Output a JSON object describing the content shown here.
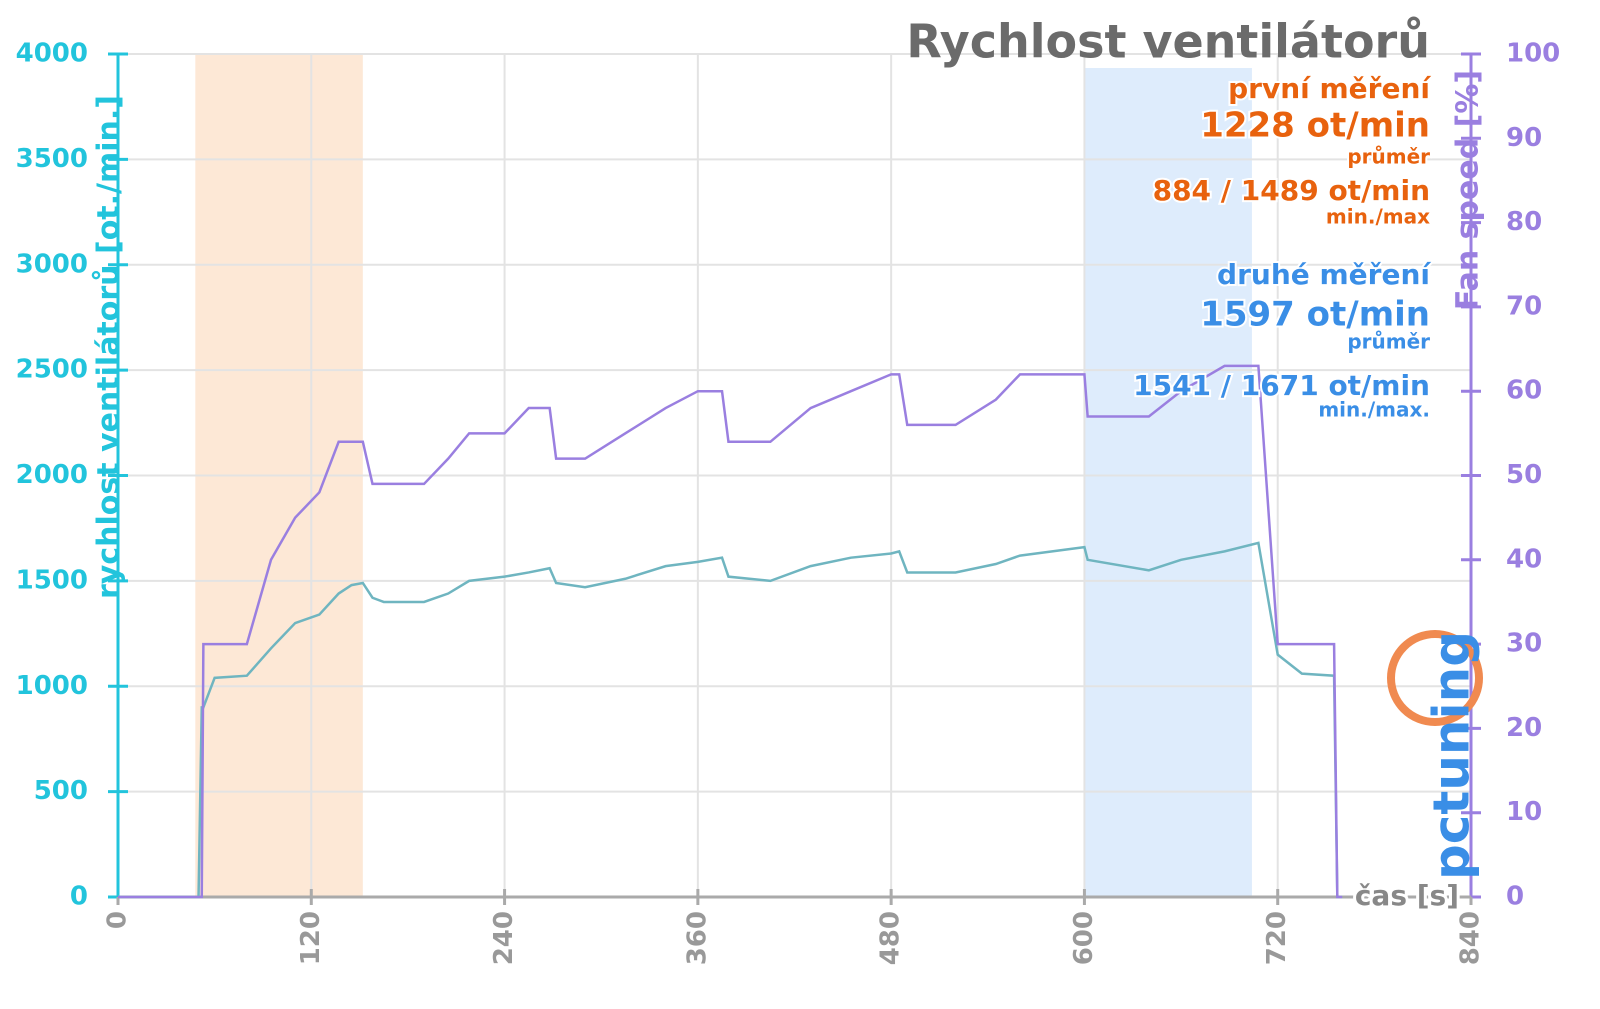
{
  "chart_data": {
    "type": "line",
    "title": "Rychlost ventilátorů",
    "x_label": "čas [s]",
    "y_label": "rychlost ventilátorů [ot./min.]",
    "y2_label": "Fan speed [%]",
    "logo": "pctuning",
    "x": [
      0,
      50,
      52,
      53,
      60,
      80,
      95,
      110,
      125,
      137,
      145,
      152,
      158,
      165,
      190,
      205,
      218,
      240,
      255,
      268,
      272,
      290,
      315,
      340,
      360,
      375,
      379,
      405,
      430,
      455,
      480,
      485,
      490,
      520,
      545,
      560,
      590,
      600,
      602,
      640,
      660,
      687,
      708,
      720,
      735,
      755,
      757,
      760
    ],
    "series": [
      {
        "name": "rychlost ventilátorů",
        "color": "#6fb5c0",
        "values": [
          0,
          0,
          900,
          900,
          1040,
          1050,
          1180,
          1300,
          1340,
          1440,
          1480,
          1490,
          1420,
          1400,
          1400,
          1440,
          1500,
          1520,
          1540,
          1560,
          1490,
          1470,
          1510,
          1570,
          1590,
          1610,
          1520,
          1500,
          1570,
          1610,
          1630,
          1640,
          1540,
          1540,
          1580,
          1620,
          1650,
          1660,
          1600,
          1550,
          1600,
          1640,
          1680,
          1150,
          1060,
          1050,
          0,
          0
        ]
      },
      {
        "name": "Fan speed",
        "color": "#9a7fe0",
        "axis": "y2",
        "values": [
          0,
          0,
          0,
          30,
          30,
          30,
          40,
          45,
          48,
          54,
          54,
          54,
          49,
          49,
          49,
          52,
          55,
          55,
          58,
          58,
          52,
          52,
          55,
          58,
          60,
          60,
          54,
          54,
          58,
          60,
          62,
          62,
          56,
          56,
          59,
          62,
          62,
          62,
          57,
          57,
          60,
          63,
          63,
          30,
          30,
          30,
          0,
          0
        ]
      }
    ],
    "shaded_regions": [
      {
        "x": [
          48,
          152
        ],
        "color": "#fde4cf"
      },
      {
        "x": [
          600,
          704
        ],
        "color": "#d8e9fb"
      }
    ],
    "annotations": [
      {
        "text": "první měření",
        "color": "#e8620e"
      },
      {
        "text": "1228 ot/min",
        "color": "#e8620e"
      },
      {
        "text": "průměr",
        "color": "#e8620e"
      },
      {
        "text": "884 / 1489 ot/min",
        "color": "#e8620e"
      },
      {
        "text": "min./max",
        "color": "#e8620e"
      },
      {
        "text": "druhé měření",
        "color": "#3a8ee6"
      },
      {
        "text": "1597 ot/min",
        "color": "#3a8ee6"
      },
      {
        "text": "průměr",
        "color": "#3a8ee6"
      },
      {
        "text": "1541 / 1671 ot/min",
        "color": "#3a8ee6"
      },
      {
        "text": "min./max.",
        "color": "#3a8ee6"
      }
    ],
    "xlim": [
      0,
      840
    ],
    "xticks": [
      0,
      120,
      240,
      360,
      480,
      600,
      720,
      840
    ],
    "ylim": [
      0,
      4000
    ],
    "yticks": [
      0,
      500,
      1000,
      1500,
      2000,
      2500,
      3000,
      3500,
      4000
    ],
    "y2lim": [
      0,
      100
    ],
    "y2ticks": [
      0,
      10,
      20,
      30,
      40,
      50,
      60,
      70,
      80,
      90,
      100
    ],
    "grid": true,
    "y_color": "#22c4dc",
    "y2_color": "#9a7fe0"
  }
}
